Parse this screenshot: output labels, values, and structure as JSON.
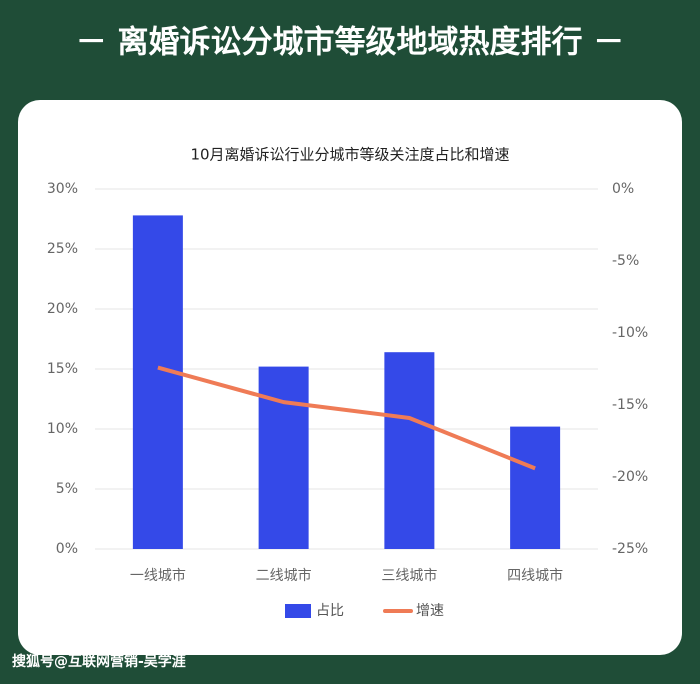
{
  "header": {
    "title": "－ 离婚诉讼分城市等级地域热度排行 －"
  },
  "watermark": "搜狐号@互联网营销-吴学涯",
  "chart_data": {
    "type": "bar",
    "title": "10月离婚诉讼行业分城市等级关注度占比和增速",
    "categories": [
      "一线城市",
      "二线城市",
      "三线城市",
      "四线城市"
    ],
    "series": [
      {
        "name": "占比",
        "type": "bar",
        "color": "#3449e8",
        "values": [
          27.8,
          15.2,
          16.4,
          10.2
        ]
      },
      {
        "name": "增速",
        "type": "line",
        "axis": "y2",
        "color": "#ef7b56",
        "values": [
          -12.4,
          -14.8,
          -15.9,
          -19.4
        ]
      }
    ],
    "ylim": [
      0,
      30
    ],
    "yticks": [
      {
        "value": 0,
        "label": "0%"
      },
      {
        "value": 5,
        "label": "5%"
      },
      {
        "value": 10,
        "label": "10%"
      },
      {
        "value": 15,
        "label": "15%"
      },
      {
        "value": 20,
        "label": "20%"
      },
      {
        "value": 25,
        "label": "25%"
      },
      {
        "value": 30,
        "label": "30%"
      }
    ],
    "y2lim": [
      -25,
      0
    ],
    "y2ticks": [
      {
        "value": -25,
        "label": "-25%"
      },
      {
        "value": -20,
        "label": "-20%"
      },
      {
        "value": -15,
        "label": "-15%"
      },
      {
        "value": -10,
        "label": "-10%"
      },
      {
        "value": -5,
        "label": "-5%"
      },
      {
        "value": 0,
        "label": "0%"
      }
    ],
    "grid": true,
    "legend": "bottom"
  }
}
